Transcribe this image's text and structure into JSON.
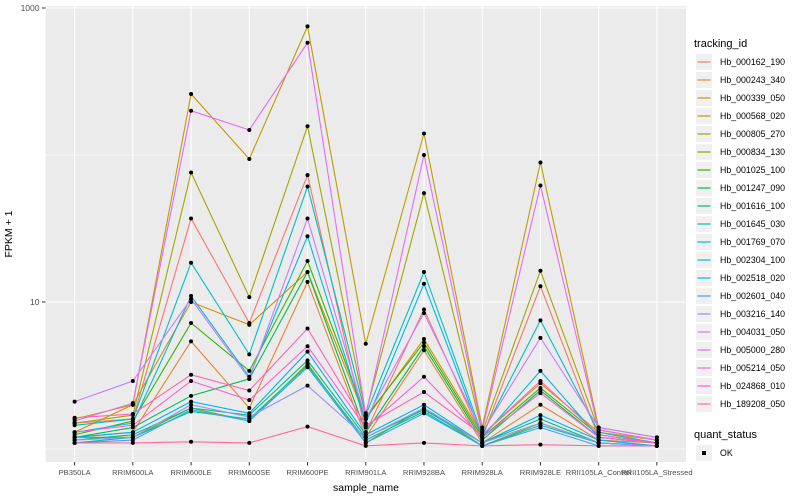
{
  "chart_data": {
    "type": "line",
    "title": "",
    "xlabel": "sample_name",
    "ylabel": "FPKM + 1",
    "y_scale": "log10",
    "ylim": [
      0.82,
      1000
    ],
    "y_ticks": [
      10,
      1000
    ],
    "y_minor_ticks": [
      1,
      100
    ],
    "grid": true,
    "legend_position": "right",
    "legend_title": "tracking_id",
    "quant_legend": {
      "title": "quant_status",
      "items": [
        "OK"
      ]
    },
    "panel_color": "#EBEBEB",
    "grid_color": "#FFFFFF",
    "point_color": "#000000",
    "tick_text_color": "#4D4D4D",
    "legend_key_color": "#F0F0F0",
    "categories": [
      "PB350LA",
      "RRIM600LA",
      "RRIM600LE",
      "RRIM600SE",
      "RRIM600PE",
      "RRIM901LA",
      "RRIM928BA",
      "RRIM928LA",
      "RRIM928LE",
      "RRII105LA_Control",
      "RRII105LA_Stressed"
    ],
    "series": [
      {
        "name": "Hb_000162_190",
        "color": "#F8766D",
        "values": [
          1.5,
          1.6,
          37,
          7.2,
          73,
          1.3,
          8.9,
          1.2,
          12.8,
          1.2,
          1.1
        ]
      },
      {
        "name": "Hb_000243_340",
        "color": "#EA8331",
        "values": [
          1.2,
          1.3,
          5.4,
          1.9,
          13.7,
          1.2,
          4.7,
          1.1,
          2.0,
          1.15,
          1.1
        ]
      },
      {
        "name": "Hb_000339_050",
        "color": "#D89000",
        "values": [
          1.3,
          2.0,
          10,
          7.0,
          16,
          1.6,
          5.6,
          1.25,
          2.8,
          1.3,
          1.15
        ]
      },
      {
        "name": "Hb_000568_020",
        "color": "#C09B00",
        "values": [
          1.6,
          2.0,
          260,
          94,
          750,
          5.2,
          140,
          1.4,
          89,
          1.4,
          1.2
        ]
      },
      {
        "name": "Hb_000805_270",
        "color": "#A3A500",
        "values": [
          1.5,
          1.7,
          76,
          10.8,
          157,
          1.75,
          55,
          1.3,
          16.3,
          1.35,
          1.15
        ]
      },
      {
        "name": "Hb_000834_130",
        "color": "#7CAE00",
        "values": [
          1.2,
          1.2,
          1.9,
          1.55,
          3.8,
          1.1,
          1.9,
          1.05,
          1.5,
          1.1,
          1.05
        ]
      },
      {
        "name": "Hb_001025_100",
        "color": "#39B600",
        "values": [
          1.25,
          1.55,
          7.2,
          3.4,
          19,
          1.65,
          5.3,
          1.2,
          2.6,
          1.25,
          1.1
        ]
      },
      {
        "name": "Hb_001247_090",
        "color": "#00BB4E",
        "values": [
          1.2,
          1.4,
          2.3,
          3.0,
          16,
          1.3,
          5.0,
          1.15,
          2.5,
          1.2,
          1.1
        ]
      },
      {
        "name": "Hb_001616_100",
        "color": "#00BF7D",
        "values": [
          1.15,
          1.25,
          1.9,
          1.7,
          4.0,
          1.2,
          1.85,
          1.1,
          1.6,
          1.1,
          1.05
        ]
      },
      {
        "name": "Hb_001645_030",
        "color": "#00C1A3",
        "values": [
          1.1,
          1.2,
          1.8,
          1.6,
          3.7,
          1.15,
          1.8,
          1.05,
          1.45,
          1.1,
          1.05
        ]
      },
      {
        "name": "Hb_001769_070",
        "color": "#00BFC4",
        "values": [
          1.45,
          1.6,
          18.5,
          4.4,
          61,
          1.7,
          16,
          1.25,
          7.5,
          1.3,
          1.1
        ]
      },
      {
        "name": "Hb_002304_100",
        "color": "#00BAE0",
        "values": [
          1.3,
          1.5,
          11,
          3.1,
          28,
          1.5,
          13.3,
          1.2,
          3.4,
          1.2,
          1.1
        ]
      },
      {
        "name": "Hb_002518_020",
        "color": "#00B0F6",
        "values": [
          1.2,
          1.3,
          2.1,
          1.75,
          4.6,
          1.25,
          2.0,
          1.1,
          1.7,
          1.15,
          1.05
        ]
      },
      {
        "name": "Hb_002601_040",
        "color": "#35A2FF",
        "values": [
          1.1,
          1.15,
          1.85,
          1.55,
          3.6,
          1.1,
          1.75,
          1.05,
          1.4,
          1.05,
          1.05
        ]
      },
      {
        "name": "Hb_003216_140",
        "color": "#9590FF",
        "values": [
          1.15,
          1.2,
          2.0,
          1.65,
          2.7,
          1.2,
          1.9,
          1.1,
          1.5,
          1.1,
          1.05
        ]
      },
      {
        "name": "Hb_004031_050",
        "color": "#C77CFF",
        "values": [
          2.1,
          2.9,
          10.5,
          3.0,
          37,
          1.6,
          8.4,
          1.3,
          5.7,
          1.4,
          1.2
        ]
      },
      {
        "name": "Hb_005000_280",
        "color": "#E76BF3",
        "values": [
          1.55,
          2.05,
          200,
          148,
          580,
          1.7,
          100,
          1.35,
          62,
          1.35,
          1.15
        ]
      },
      {
        "name": "Hb_005214_050",
        "color": "#FA62DB",
        "values": [
          1.3,
          1.45,
          2.9,
          2.15,
          5.0,
          1.4,
          3.1,
          1.2,
          2.4,
          1.2,
          1.1
        ]
      },
      {
        "name": "Hb_024868_010",
        "color": "#FF62BC",
        "values": [
          1.63,
          1.73,
          3.2,
          2.5,
          6.6,
          1.45,
          2.44,
          1.25,
          2.9,
          1.25,
          1.1
        ]
      },
      {
        "name": "Hb_189208_050",
        "color": "#FF6A98",
        "values": [
          1.1,
          1.1,
          1.12,
          1.1,
          1.42,
          1.05,
          1.1,
          1.05,
          1.07,
          1.05,
          1.05
        ]
      }
    ]
  }
}
